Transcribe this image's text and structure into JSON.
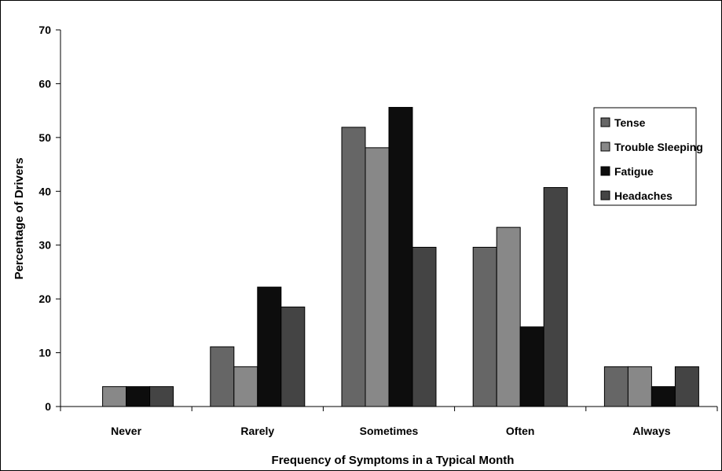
{
  "chart_data": {
    "type": "bar",
    "categories": [
      "Never",
      "Rarely",
      "Sometimes",
      "Often",
      "Always"
    ],
    "series": [
      {
        "name": "Tense",
        "color": "#666666",
        "values": [
          0,
          11.1,
          51.9,
          29.6,
          7.4
        ]
      },
      {
        "name": "Trouble Sleeping",
        "color": "#888888",
        "values": [
          3.7,
          7.4,
          48.1,
          33.3,
          7.4
        ]
      },
      {
        "name": "Fatigue",
        "color": "#0d0d0d",
        "values": [
          3.7,
          22.2,
          55.6,
          14.8,
          3.7
        ]
      },
      {
        "name": "Headaches",
        "color": "#444444",
        "values": [
          3.7,
          18.5,
          29.6,
          40.7,
          7.4
        ]
      }
    ],
    "xlabel": "Frequency of Symptoms in a Typical Month",
    "ylabel": "Percentage of Drivers",
    "ylim": [
      0,
      70
    ],
    "yticks": [
      0,
      10,
      20,
      30,
      40,
      50,
      60,
      70
    ],
    "grid": false,
    "legend_position": "right"
  }
}
